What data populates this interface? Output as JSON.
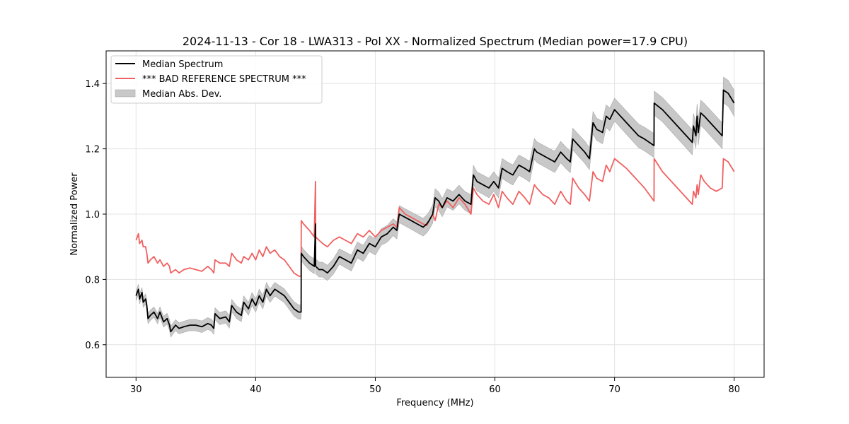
{
  "chart_data": {
    "type": "line",
    "title": "2024-11-13 - Cor 18 - LWA313 - Pol XX - Normalized Spectrum (Median power=17.9 CPU)",
    "xlabel": "Frequency (MHz)",
    "ylabel": "Normalized Power",
    "xlim": [
      27.5,
      82.5
    ],
    "ylim": [
      0.5,
      1.5
    ],
    "xticks": [
      30,
      40,
      50,
      60,
      70,
      80
    ],
    "yticks": [
      0.6,
      0.8,
      1.0,
      1.2,
      1.4
    ],
    "xtick_labels": [
      "30",
      "40",
      "50",
      "60",
      "70",
      "80"
    ],
    "ytick_labels": [
      "0.6",
      "0.8",
      "1.0",
      "1.2",
      "1.4"
    ],
    "grid": true,
    "legend_position": "top-left",
    "colors": {
      "median": "#000000",
      "reference": "#f06060",
      "mad": "#c8c8c8"
    },
    "legend": [
      {
        "label": "Median Spectrum",
        "kind": "line",
        "color": "#000000"
      },
      {
        "label": "*** BAD REFERENCE SPECTRUM ***",
        "kind": "line",
        "color": "#f06060"
      },
      {
        "label": "Median Abs. Dev.",
        "kind": "patch",
        "color": "#c8c8c8"
      }
    ],
    "series": [
      {
        "name": "Median Spectrum",
        "x": [
          30.0,
          30.2,
          30.3,
          30.5,
          30.6,
          30.8,
          30.9,
          31.0,
          31.2,
          31.5,
          31.8,
          32.0,
          32.3,
          32.6,
          32.8,
          32.9,
          33.3,
          33.6,
          34.0,
          34.5,
          35.0,
          35.5,
          36.0,
          36.3,
          36.5,
          36.6,
          37.0,
          37.5,
          37.8,
          38.0,
          38.4,
          38.8,
          39.0,
          39.4,
          39.7,
          40.0,
          40.3,
          40.6,
          40.9,
          41.2,
          41.6,
          42.0,
          42.4,
          42.8,
          43.2,
          43.6,
          43.8,
          43.81,
          44.0,
          44.5,
          44.9,
          45.0,
          45.01,
          45.3,
          45.6,
          46.0,
          46.5,
          47.0,
          47.5,
          48.0,
          48.5,
          49.0,
          49.5,
          50.0,
          50.5,
          51.0,
          51.5,
          51.8,
          52.0,
          52.5,
          53.0,
          53.5,
          54.0,
          54.3,
          54.5,
          54.8,
          55.0,
          55.3,
          55.6,
          56.0,
          56.5,
          57.0,
          57.5,
          58.0,
          58.2,
          58.5,
          59.0,
          59.5,
          59.9,
          60.3,
          60.6,
          61.0,
          61.5,
          62.0,
          62.5,
          62.9,
          63.3,
          63.5,
          64.0,
          64.5,
          65.0,
          65.5,
          66.0,
          66.3,
          66.5,
          67.0,
          67.5,
          67.9,
          68.2,
          68.5,
          69.0,
          69.3,
          69.6,
          70.0,
          71.0,
          72.0,
          72.5,
          73.3,
          73.31,
          74.0,
          75.0,
          76.0,
          76.5,
          76.6,
          76.8,
          76.9,
          77.0,
          77.2,
          77.5,
          78.0,
          78.5,
          79.0,
          79.1,
          79.5,
          80.0
        ],
        "values": [
          0.75,
          0.77,
          0.74,
          0.76,
          0.73,
          0.74,
          0.72,
          0.68,
          0.69,
          0.7,
          0.68,
          0.7,
          0.67,
          0.68,
          0.66,
          0.64,
          0.66,
          0.65,
          0.655,
          0.66,
          0.66,
          0.655,
          0.665,
          0.66,
          0.65,
          0.695,
          0.68,
          0.685,
          0.67,
          0.72,
          0.7,
          0.69,
          0.73,
          0.71,
          0.74,
          0.72,
          0.75,
          0.73,
          0.77,
          0.75,
          0.77,
          0.76,
          0.75,
          0.73,
          0.71,
          0.7,
          0.7,
          0.88,
          0.87,
          0.85,
          0.84,
          0.97,
          0.84,
          0.83,
          0.83,
          0.82,
          0.84,
          0.87,
          0.86,
          0.85,
          0.89,
          0.88,
          0.91,
          0.9,
          0.93,
          0.94,
          0.96,
          0.95,
          1.0,
          0.99,
          0.98,
          0.97,
          0.96,
          0.97,
          0.98,
          1.0,
          1.05,
          1.04,
          1.02,
          1.05,
          1.04,
          1.06,
          1.04,
          1.03,
          1.12,
          1.1,
          1.09,
          1.08,
          1.1,
          1.08,
          1.14,
          1.13,
          1.12,
          1.15,
          1.14,
          1.13,
          1.2,
          1.19,
          1.18,
          1.17,
          1.16,
          1.19,
          1.17,
          1.16,
          1.23,
          1.21,
          1.19,
          1.17,
          1.28,
          1.26,
          1.25,
          1.3,
          1.29,
          1.32,
          1.28,
          1.24,
          1.23,
          1.21,
          1.34,
          1.32,
          1.28,
          1.24,
          1.22,
          1.27,
          1.24,
          1.3,
          1.25,
          1.31,
          1.3,
          1.28,
          1.26,
          1.24,
          1.38,
          1.37,
          1.34
        ]
      },
      {
        "name": "*** BAD REFERENCE SPECTRUM ***",
        "x": [
          30.0,
          30.2,
          30.3,
          30.5,
          30.6,
          30.8,
          30.9,
          31.0,
          31.2,
          31.5,
          31.8,
          32.0,
          32.3,
          32.6,
          32.8,
          32.9,
          33.3,
          33.6,
          34.0,
          34.5,
          35.0,
          35.5,
          36.0,
          36.3,
          36.5,
          36.6,
          37.0,
          37.5,
          37.8,
          38.0,
          38.4,
          38.8,
          39.0,
          39.4,
          39.7,
          40.0,
          40.3,
          40.6,
          40.9,
          41.2,
          41.6,
          42.0,
          42.4,
          42.8,
          43.2,
          43.6,
          43.8,
          43.81,
          44.0,
          44.5,
          44.9,
          45.0,
          45.01,
          45.3,
          45.6,
          46.0,
          46.5,
          47.0,
          47.5,
          48.0,
          48.5,
          49.0,
          49.5,
          50.0,
          50.5,
          51.0,
          51.5,
          51.8,
          52.0,
          52.5,
          53.0,
          53.5,
          54.0,
          54.3,
          54.5,
          54.8,
          55.0,
          55.3,
          55.6,
          56.0,
          56.5,
          57.0,
          57.5,
          58.0,
          58.2,
          58.5,
          59.0,
          59.5,
          59.9,
          60.3,
          60.6,
          61.0,
          61.5,
          62.0,
          62.5,
          62.9,
          63.3,
          63.5,
          64.0,
          64.5,
          65.0,
          65.5,
          66.0,
          66.3,
          66.5,
          67.0,
          67.5,
          67.9,
          68.2,
          68.5,
          69.0,
          69.3,
          69.6,
          70.0,
          71.0,
          72.0,
          72.5,
          73.3,
          73.31,
          74.0,
          75.0,
          76.0,
          76.5,
          76.6,
          76.8,
          76.9,
          77.0,
          77.2,
          77.5,
          78.0,
          78.5,
          79.0,
          79.1,
          79.5,
          80.0
        ],
        "values": [
          0.92,
          0.94,
          0.91,
          0.92,
          0.9,
          0.9,
          0.88,
          0.85,
          0.86,
          0.87,
          0.85,
          0.86,
          0.84,
          0.85,
          0.84,
          0.82,
          0.83,
          0.82,
          0.83,
          0.835,
          0.83,
          0.825,
          0.84,
          0.83,
          0.82,
          0.86,
          0.85,
          0.85,
          0.84,
          0.88,
          0.86,
          0.85,
          0.87,
          0.86,
          0.88,
          0.86,
          0.89,
          0.87,
          0.9,
          0.88,
          0.89,
          0.87,
          0.86,
          0.84,
          0.82,
          0.81,
          0.81,
          0.98,
          0.97,
          0.95,
          0.93,
          1.1,
          0.93,
          0.92,
          0.91,
          0.9,
          0.92,
          0.93,
          0.92,
          0.91,
          0.94,
          0.93,
          0.95,
          0.93,
          0.95,
          0.96,
          0.97,
          0.96,
          1.02,
          1.0,
          0.99,
          0.98,
          0.97,
          0.965,
          0.98,
          1.0,
          0.98,
          1.03,
          1.02,
          1.04,
          1.02,
          1.05,
          1.03,
          1.0,
          1.08,
          1.06,
          1.04,
          1.03,
          1.06,
          1.02,
          1.07,
          1.05,
          1.03,
          1.07,
          1.05,
          1.03,
          1.09,
          1.08,
          1.06,
          1.05,
          1.03,
          1.07,
          1.04,
          1.03,
          1.11,
          1.08,
          1.06,
          1.04,
          1.13,
          1.11,
          1.1,
          1.15,
          1.13,
          1.17,
          1.14,
          1.1,
          1.08,
          1.04,
          1.17,
          1.13,
          1.09,
          1.05,
          1.03,
          1.07,
          1.05,
          1.09,
          1.06,
          1.12,
          1.1,
          1.08,
          1.07,
          1.08,
          1.17,
          1.16,
          1.13
        ]
      }
    ],
    "mad_band": {
      "name": "Median Abs. Dev.",
      "note": "shaded band around Median Spectrum; half-width grows with frequency",
      "halfwidth_at_30": 0.015,
      "halfwidth_at_80": 0.04
    }
  }
}
